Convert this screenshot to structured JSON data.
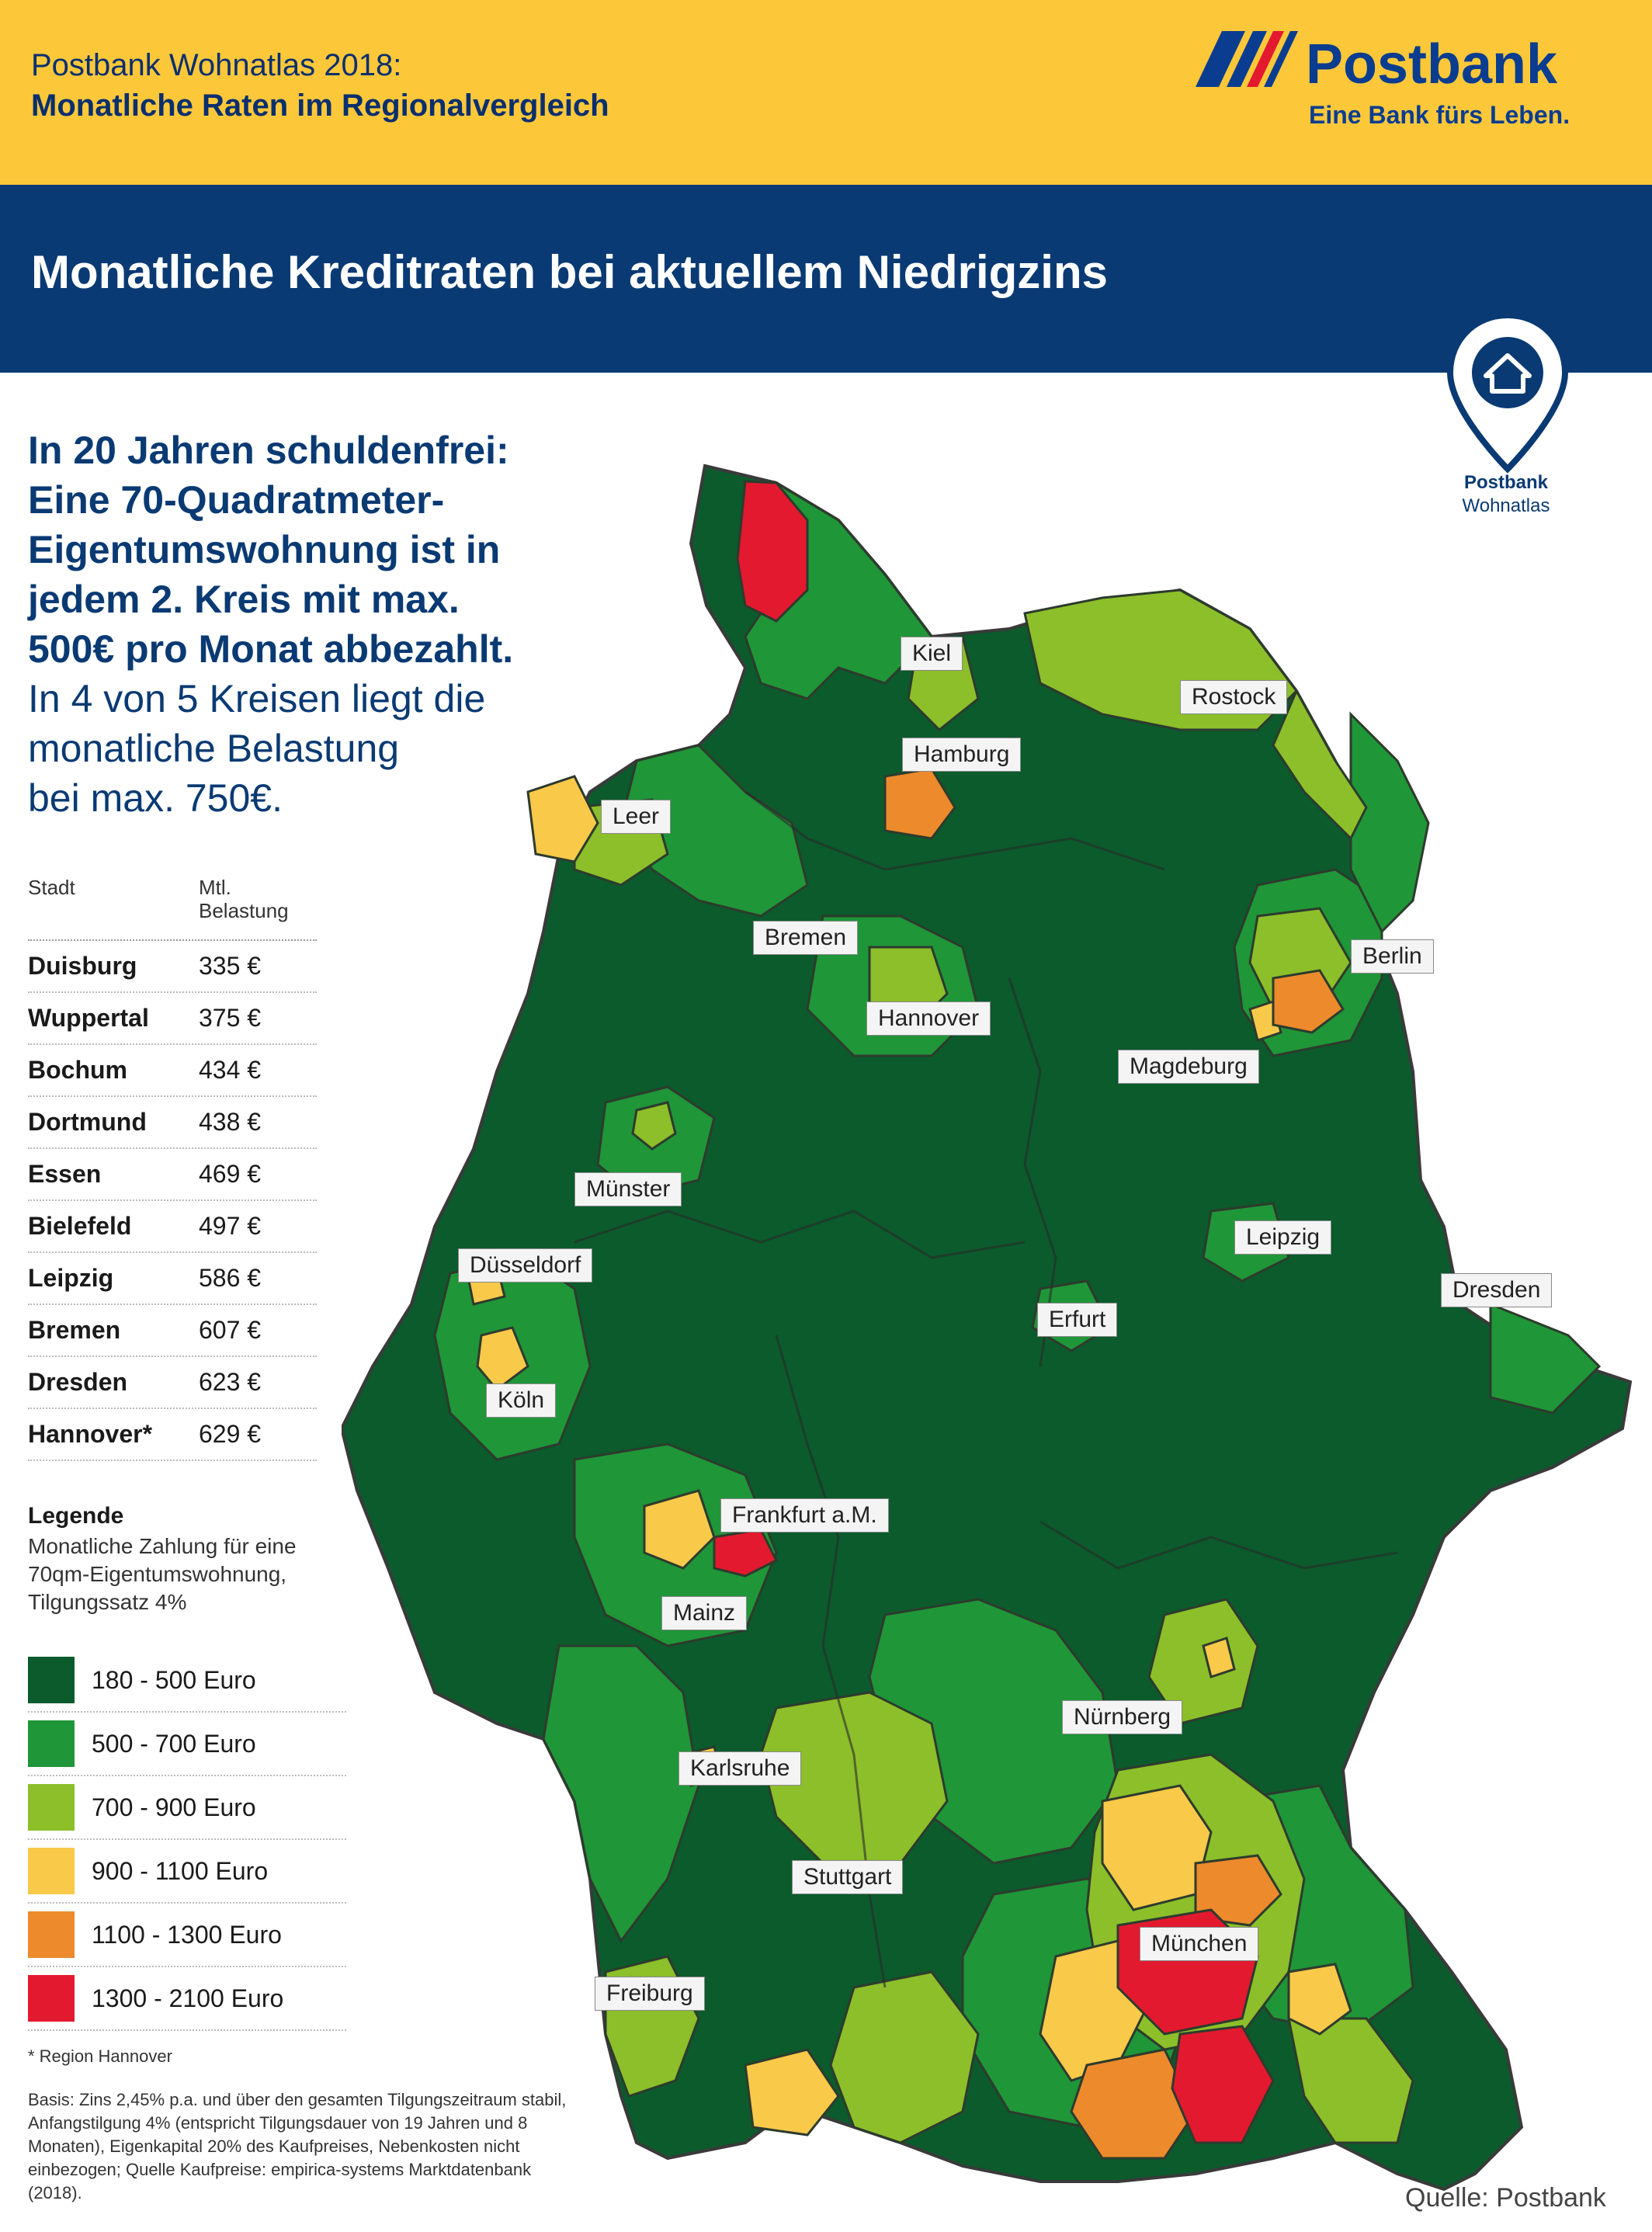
{
  "header": {
    "subtitle_line1": "Postbank Wohnatlas 2018:",
    "subtitle_line2": "Monatliche Raten im Regionalvergleich",
    "logo_brand": "Postbank",
    "logo_slogan": "Eine Bank fürs Leben."
  },
  "banner": {
    "title": "Monatliche Kreditraten bei aktuellem Niedrigzins"
  },
  "pin": {
    "label_line1": "Postbank",
    "label_line2": "Wohnatlas"
  },
  "intro": {
    "bold_lines": [
      "In 20 Jahren schuldenfrei:",
      "Eine 70-Quadratmeter-",
      "Eigentumswohnung ist in",
      "jedem 2. Kreis mit max.",
      "500€ pro Monat abbezahlt."
    ],
    "normal_lines": [
      "In 4 von 5 Kreisen liegt die",
      "monatliche Belastung",
      "bei max. 750€."
    ]
  },
  "table": {
    "header_city": "Stadt",
    "header_value_line1": "Mtl.",
    "header_value_line2": "Belastung",
    "rows": [
      {
        "city": "Duisburg",
        "value": "335 €"
      },
      {
        "city": "Wuppertal",
        "value": "375 €"
      },
      {
        "city": "Bochum",
        "value": "434 €"
      },
      {
        "city": "Dortmund",
        "value": "438 €"
      },
      {
        "city": "Essen",
        "value": "469 €"
      },
      {
        "city": "Bielefeld",
        "value": "497 €"
      },
      {
        "city": "Leipzig",
        "value": "586 €"
      },
      {
        "city": "Bremen",
        "value": "607 €"
      },
      {
        "city": "Dresden",
        "value": "623 €"
      },
      {
        "city": "Hannover*",
        "value": "629 €"
      }
    ]
  },
  "legend": {
    "title": "Legende",
    "description": "Monatliche Zahlung für eine 70qm-Eigentumswohnung, Tilgungssatz 4%",
    "items": [
      {
        "label": "180 - 500 Euro",
        "color": "#0b5b2c"
      },
      {
        "label": "500 - 700 Euro",
        "color": "#1f9638"
      },
      {
        "label": "700 - 900 Euro",
        "color": "#8cbf2a"
      },
      {
        "label": "900 - 1100 Euro",
        "color": "#f9c94a"
      },
      {
        "label": "1100 - 1300 Euro",
        "color": "#ec8a2c"
      },
      {
        "label": "1300 - 2100 Euro",
        "color": "#e3192f"
      }
    ]
  },
  "note": "* Region Hannover",
  "basis": "Basis: Zins 2,45% p.a. und über den gesamten Tilgungszeitraum stabil, Anfangstilgung 4% (entspricht Tilgungsdauer von 19 Jahren und 8 Monaten), Eigenkapital 20% des Kaufpreises, Nebenkosten nicht einbezogen; Quelle Kaufpreise: empirica-systems Marktdatenbank (2018).",
  "source": "Quelle: Postbank",
  "cities": [
    "Kiel",
    "Rostock",
    "Hamburg",
    "Leer",
    "Bremen",
    "Berlin",
    "Hannover",
    "Magdeburg",
    "Münster",
    "Düsseldorf",
    "Leipzig",
    "Dresden",
    "Erfurt",
    "Köln",
    "Frankfurt a.M.",
    "Mainz",
    "Nürnberg",
    "Karlsruhe",
    "Stuttgart",
    "München",
    "Freiburg"
  ]
}
